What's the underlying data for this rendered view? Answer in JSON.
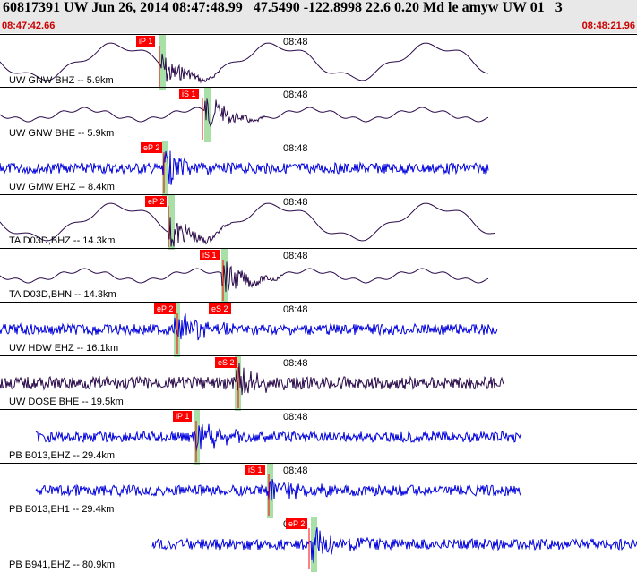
{
  "header": {
    "title": "60817391 UW Jun 26, 2014 08:47:48.99   47.5490 -122.8998 22.6 0.20 Md le amyw UW 01   3",
    "start_time": "08:47:42.66",
    "end_time": "08:48:21.96"
  },
  "colors": {
    "header_bg": "#e8e8e8",
    "pick": "#ff0000",
    "trace_dark": "#2a0a4a",
    "trace_blue": "#0000dd",
    "marker_green": "#a8e0a8"
  },
  "traces": [
    {
      "label": "UW GNW BHZ -- 5.9km",
      "time": "08:48",
      "pick": "iP 1",
      "color": "dark"
    },
    {
      "label": "UW GNW BHE -- 5.9km",
      "time": "08:48",
      "pick": "iS 1",
      "color": "dark"
    },
    {
      "label": "UW GMW EHZ -- 8.4km",
      "time": "08:48",
      "pick": "eP 2",
      "color": "blue"
    },
    {
      "label": "TA D03D,BHZ -- 14.3km",
      "time": "08:48",
      "pick": "eP 2",
      "color": "dark"
    },
    {
      "label": "TA D03D,BHN -- 14.3km",
      "time": "08:48",
      "pick": "iS 1",
      "color": "dark"
    },
    {
      "label": "UW HDW EHZ -- 16.1km",
      "time": "08:48",
      "pick": "eP 2",
      "pick2": "eS 2",
      "color": "blue"
    },
    {
      "label": "UW DOSE BHE -- 19.5km",
      "time": "08:48",
      "pick": "eS 2",
      "color": "dark"
    },
    {
      "label": "PB B013,EHZ -- 29.4km",
      "time": "08:48",
      "pick": "iP 1",
      "color": "blue"
    },
    {
      "label": "PB B013,EH1 -- 29.4km",
      "time": "08:48",
      "pick": "iS 1",
      "color": "blue"
    },
    {
      "label": "PB B941,EHZ -- 80.9km",
      "time": "08:48",
      "pick": "eP 2",
      "color": "blue"
    }
  ]
}
